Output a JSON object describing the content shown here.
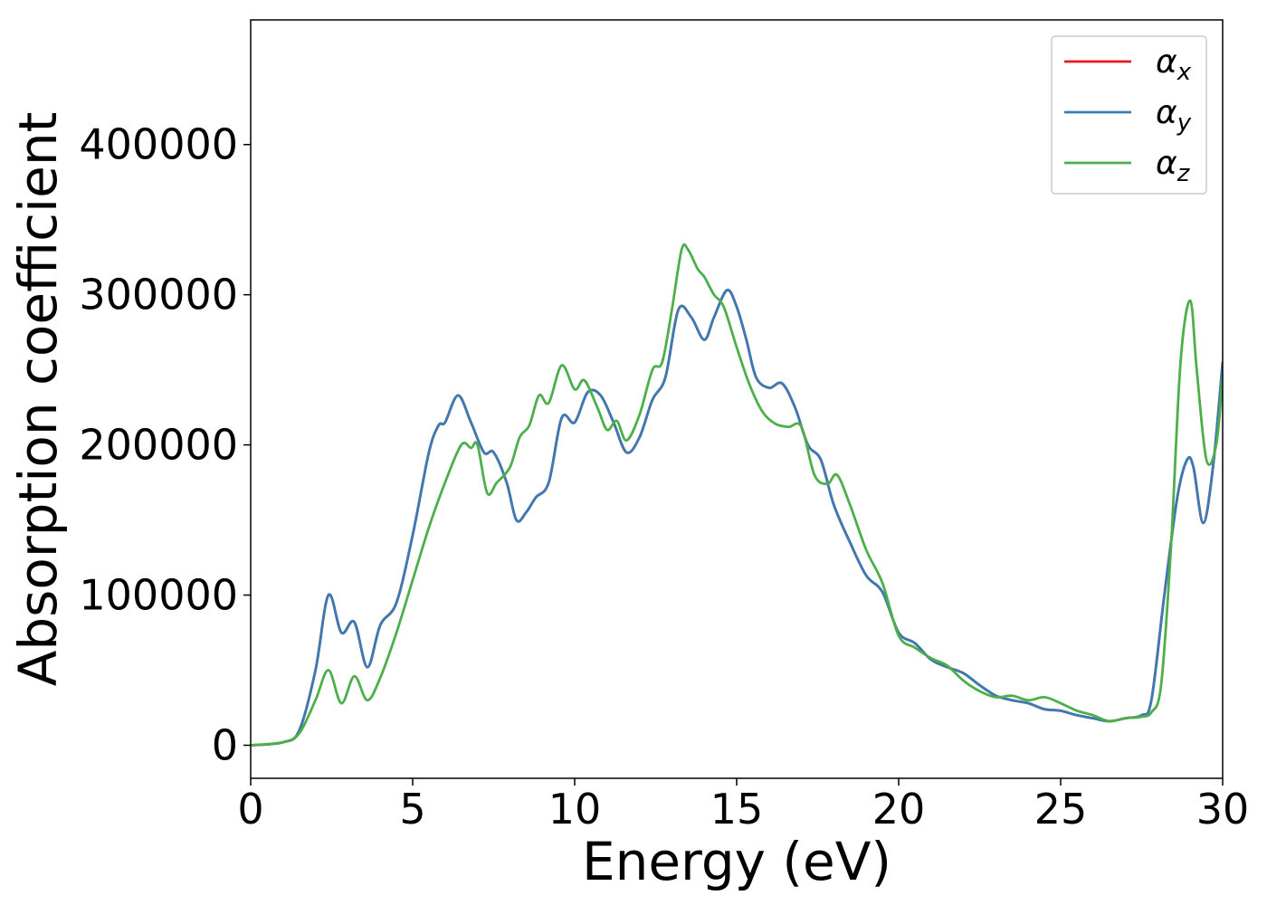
{
  "chart_data": {
    "type": "line",
    "title": "",
    "xlabel": "Energy (eV)",
    "ylabel": "Absorption coefficient",
    "xlim": [
      0,
      30
    ],
    "ylim": [
      -22000,
      483000
    ],
    "xticks": [
      0,
      5,
      10,
      15,
      20,
      25,
      30
    ],
    "yticks": [
      0,
      100000,
      200000,
      300000,
      400000
    ],
    "grid": false,
    "legend_position": "top-right",
    "series": [
      {
        "name": "α",
        "subscript": "x",
        "color": "#e41a1c",
        "x": [
          0,
          1,
          1.5,
          2.0,
          2.4,
          2.8,
          3.2,
          3.6,
          4.0,
          4.5,
          5.0,
          5.5,
          5.8,
          6.0,
          6.4,
          6.8,
          7.2,
          7.5,
          7.9,
          8.2,
          8.5,
          8.8,
          9.2,
          9.6,
          10.0,
          10.4,
          10.8,
          11.2,
          11.6,
          12.0,
          12.4,
          12.8,
          13.2,
          13.6,
          14.0,
          14.3,
          14.7,
          15.0,
          15.3,
          15.6,
          16.0,
          16.4,
          16.8,
          17.2,
          17.6,
          18.0,
          18.5,
          19.0,
          19.5,
          20.0,
          20.5,
          21.0,
          21.5,
          22.0,
          22.5,
          23.0,
          23.5,
          24.0,
          24.5,
          25.0,
          25.5,
          26.0,
          26.5,
          27.0,
          27.5,
          27.8,
          28.2,
          28.6,
          28.9,
          29.1,
          29.4,
          29.7,
          30.0
        ],
        "y": [
          0,
          2000,
          10000,
          50000,
          100000,
          75000,
          82000,
          52000,
          80000,
          95000,
          140000,
          195000,
          213000,
          215000,
          233000,
          215000,
          195000,
          195000,
          175000,
          150000,
          155000,
          165000,
          175000,
          218000,
          215000,
          235000,
          233000,
          215000,
          195000,
          205000,
          230000,
          245000,
          290000,
          285000,
          270000,
          285000,
          303000,
          292000,
          270000,
          245000,
          238000,
          241000,
          225000,
          200000,
          190000,
          160000,
          135000,
          113000,
          102000,
          75000,
          68000,
          57000,
          52000,
          48000,
          40000,
          33000,
          30000,
          28000,
          24000,
          23000,
          20000,
          18000,
          16000,
          18000,
          20000,
          30000,
          100000,
          165000,
          190000,
          185000,
          148000,
          185000,
          255000
        ]
      },
      {
        "name": "α",
        "subscript": "y",
        "color": "#3a7bb5",
        "x": [
          0,
          1,
          1.5,
          2.0,
          2.4,
          2.8,
          3.2,
          3.6,
          4.0,
          4.5,
          5.0,
          5.5,
          5.8,
          6.0,
          6.4,
          6.8,
          7.2,
          7.5,
          7.9,
          8.2,
          8.5,
          8.8,
          9.2,
          9.6,
          10.0,
          10.4,
          10.8,
          11.2,
          11.6,
          12.0,
          12.4,
          12.8,
          13.2,
          13.6,
          14.0,
          14.3,
          14.7,
          15.0,
          15.3,
          15.6,
          16.0,
          16.4,
          16.8,
          17.2,
          17.6,
          18.0,
          18.5,
          19.0,
          19.5,
          20.0,
          20.5,
          21.0,
          21.5,
          22.0,
          22.5,
          23.0,
          23.5,
          24.0,
          24.5,
          25.0,
          25.5,
          26.0,
          26.5,
          27.0,
          27.5,
          27.8,
          28.2,
          28.6,
          28.9,
          29.1,
          29.4,
          29.7,
          30.0
        ],
        "y": [
          0,
          2000,
          10000,
          50000,
          100000,
          75000,
          82000,
          52000,
          80000,
          95000,
          140000,
          195000,
          213000,
          215000,
          233000,
          215000,
          195000,
          195000,
          175000,
          150000,
          155000,
          165000,
          175000,
          218000,
          215000,
          235000,
          233000,
          215000,
          195000,
          205000,
          230000,
          245000,
          290000,
          285000,
          270000,
          285000,
          303000,
          292000,
          270000,
          245000,
          238000,
          241000,
          225000,
          200000,
          190000,
          160000,
          135000,
          113000,
          102000,
          75000,
          68000,
          57000,
          52000,
          48000,
          40000,
          33000,
          30000,
          28000,
          24000,
          23000,
          20000,
          18000,
          16000,
          18000,
          20000,
          30000,
          100000,
          165000,
          190000,
          185000,
          148000,
          185000,
          255000
        ]
      },
      {
        "name": "α",
        "subscript": "z",
        "color": "#4daf4a",
        "x": [
          0,
          1,
          1.5,
          2.0,
          2.4,
          2.8,
          3.2,
          3.6,
          4.0,
          4.5,
          5.0,
          5.5,
          6.0,
          6.5,
          6.8,
          7.0,
          7.3,
          7.6,
          8.0,
          8.3,
          8.6,
          8.9,
          9.2,
          9.6,
          10.0,
          10.3,
          10.7,
          11.0,
          11.3,
          11.6,
          12.0,
          12.4,
          12.7,
          13.0,
          13.3,
          13.5,
          13.8,
          14.0,
          14.3,
          14.6,
          15.0,
          15.4,
          15.8,
          16.2,
          16.6,
          17.0,
          17.4,
          17.8,
          18.1,
          18.5,
          19.0,
          19.5,
          20.0,
          20.5,
          21.0,
          21.5,
          22.0,
          22.5,
          23.0,
          23.5,
          24.0,
          24.5,
          25.0,
          25.5,
          26.0,
          26.5,
          27.0,
          27.5,
          27.8,
          28.1,
          28.4,
          28.7,
          29.0,
          29.2,
          29.5,
          29.8,
          30.0
        ],
        "y": [
          0,
          2000,
          8000,
          30000,
          50000,
          28000,
          46000,
          30000,
          45000,
          75000,
          110000,
          145000,
          175000,
          200000,
          198000,
          200000,
          168000,
          175000,
          185000,
          205000,
          213000,
          233000,
          228000,
          253000,
          237000,
          243000,
          225000,
          210000,
          216000,
          203000,
          220000,
          250000,
          255000,
          290000,
          330000,
          330000,
          317000,
          312000,
          300000,
          292000,
          265000,
          240000,
          222000,
          214000,
          212000,
          212000,
          180000,
          174000,
          180000,
          160000,
          130000,
          108000,
          73000,
          65000,
          58000,
          53000,
          43000,
          36000,
          32000,
          33000,
          30000,
          32000,
          28000,
          23000,
          20000,
          16000,
          18000,
          19000,
          22000,
          40000,
          130000,
          255000,
          296000,
          250000,
          190000,
          200000,
          245000
        ]
      }
    ]
  }
}
